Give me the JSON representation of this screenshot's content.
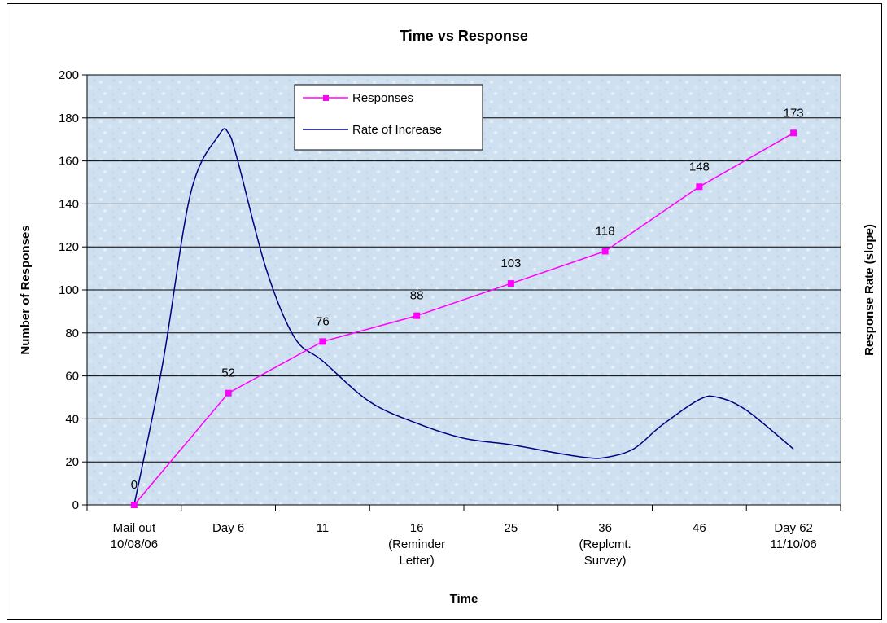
{
  "chart_data": {
    "type": "line",
    "title": "Time vs Response",
    "xlabel": "Time",
    "ylabel": "Number of Responses",
    "ylabel_right": "Response Rate (slope)",
    "ylim": [
      0,
      200
    ],
    "yticks": [
      0,
      20,
      40,
      60,
      80,
      100,
      120,
      140,
      160,
      180,
      200
    ],
    "grid": true,
    "legend_position": "top-center",
    "categories": [
      [
        "Mail out",
        "10/08/06"
      ],
      [
        "Day 6"
      ],
      [
        "11"
      ],
      [
        "16",
        "(Reminder",
        "Letter)"
      ],
      [
        "25"
      ],
      [
        "36",
        "(Replcmt.",
        "Survey)"
      ],
      [
        "46"
      ],
      [
        "Day 62",
        "11/10/06"
      ]
    ],
    "series": [
      {
        "name": "Responses",
        "color": "#ff00ff",
        "marker": "square",
        "values": [
          0,
          52,
          76,
          88,
          103,
          118,
          148,
          173
        ],
        "data_labels": [
          "0",
          "52",
          "76",
          "88",
          "103",
          "118",
          "148",
          "173"
        ]
      },
      {
        "name": "Rate of Increase",
        "color": "#000080",
        "marker": "none",
        "smooth": true,
        "x": [
          0,
          0.3,
          0.6,
          0.9,
          1,
          1.1,
          1.4,
          1.7,
          2,
          2.5,
          3,
          3.5,
          4,
          4.5,
          4.8,
          5,
          5.3,
          5.6,
          6,
          6.2,
          6.5,
          7
        ],
        "values": [
          0,
          65,
          145,
          172,
          173,
          160,
          110,
          78,
          67,
          48,
          38,
          31,
          28,
          24,
          22,
          22,
          26,
          37,
          49,
          50,
          44,
          26
        ]
      }
    ]
  },
  "colors": {
    "plot_background": "#cfe0f0",
    "gridline": "#000000",
    "responses": "#ff00ff",
    "rate": "#000080"
  }
}
